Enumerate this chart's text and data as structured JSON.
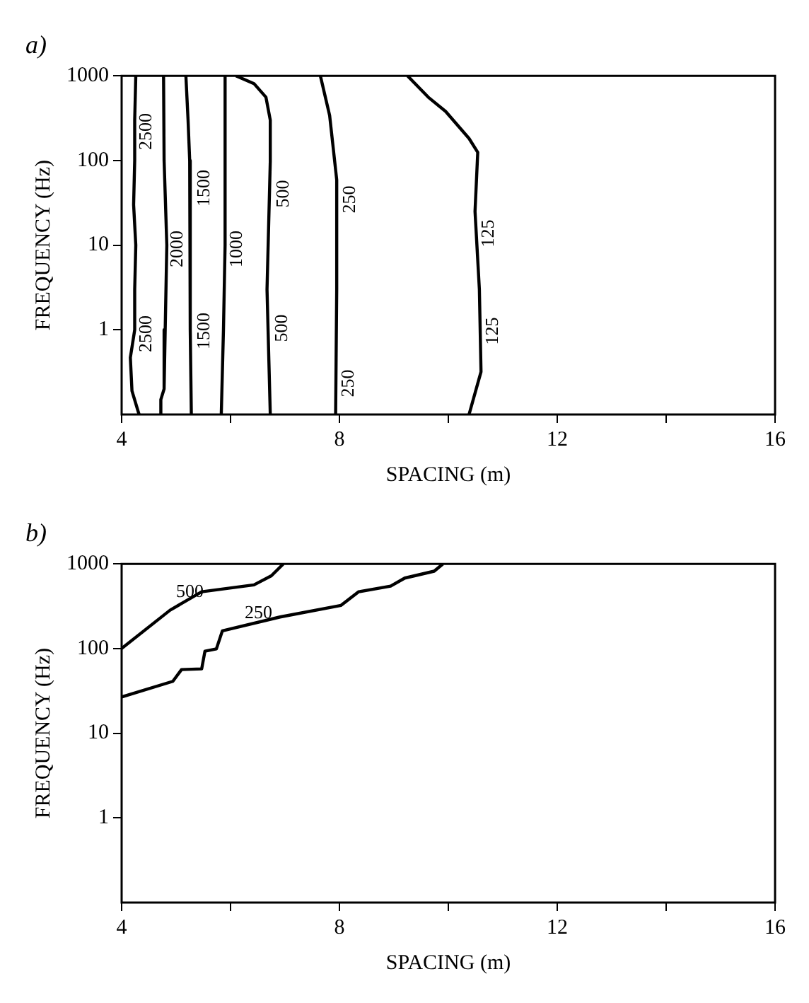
{
  "chart_data": [
    {
      "type": "line",
      "title": "a)",
      "xlabel": "SPACING (m)",
      "ylabel": "FREQUENCY (Hz)",
      "log": "y",
      "grid": false,
      "xlim": [
        4,
        16
      ],
      "xticks": [
        4,
        {
          "value": 6,
          "label": null
        },
        8,
        {
          "value": 10,
          "label": null
        },
        12,
        {
          "value": 14,
          "label": null
        },
        16
      ],
      "ylim": [
        0.1,
        1000
      ],
      "yticks": [
        1,
        10,
        100,
        1000
      ],
      "series": [
        {
          "color": "#000000",
          "x": [
            4.26,
            4.24,
            4.24,
            4.22,
            4.26,
            4.24,
            4.24,
            4.16,
            4.19,
            4.32
          ],
          "values": [
            1000,
            300,
            100,
            30,
            10,
            3,
            1,
            0.47,
            0.19,
            0.1
          ]
        },
        {
          "color": "#000000",
          "x": [
            4.77,
            4.78,
            4.83,
            4.8,
            4.78,
            4.72,
            4.72
          ],
          "values": [
            1000,
            100,
            10,
            1,
            0.2,
            0.15,
            0.1
          ]
        },
        {
          "color": "#000000",
          "x": [
            5.18,
            5.22,
            5.25,
            5.25,
            5.27,
            5.28
          ],
          "values": [
            1000,
            300,
            100,
            10,
            1,
            0.1
          ]
        },
        {
          "color": "#000000",
          "x": [
            5.9,
            5.9,
            5.9,
            5.87,
            5.83
          ],
          "values": [
            1000,
            100,
            10,
            1,
            0.1
          ]
        },
        {
          "color": "#000000",
          "x": [
            6.1,
            6.43,
            6.65,
            6.73,
            6.73,
            6.67,
            6.73
          ],
          "values": [
            1000,
            810,
            560,
            300,
            98,
            3,
            0.1
          ]
        },
        {
          "color": "#000000",
          "x": [
            7.65,
            7.82,
            7.95,
            7.95,
            7.93
          ],
          "values": [
            1000,
            340,
            59,
            3,
            0.1
          ]
        },
        {
          "color": "#000000",
          "x": [
            9.25,
            9.63,
            9.95,
            10.38,
            10.54,
            10.49,
            10.57,
            10.6,
            10.38
          ],
          "values": [
            1000,
            560,
            380,
            182,
            125,
            25,
            3,
            0.32,
            0.1
          ]
        }
      ],
      "annotations": [
        {
          "text": "2500",
          "x": 4.21,
          "y": 220
        },
        {
          "text": "2500",
          "x": 4.21,
          "y": 0.9
        },
        {
          "text": "2000",
          "x": 4.78,
          "y": 9
        },
        {
          "text": "1500",
          "x": 5.26,
          "y": 47
        },
        {
          "text": "1500",
          "x": 5.26,
          "y": 0.95
        },
        {
          "text": "1000",
          "x": 5.88,
          "y": 9
        },
        {
          "text": "500",
          "x": 6.73,
          "y": 41
        },
        {
          "text": "500",
          "x": 6.7,
          "y": 1.05
        },
        {
          "text": "250",
          "x": 7.95,
          "y": 34
        },
        {
          "text": "250",
          "x": 7.93,
          "y": 0.23
        },
        {
          "text": "125",
          "x": 10.49,
          "y": 14
        },
        {
          "text": "125",
          "x": 10.57,
          "y": 0.95
        }
      ]
    },
    {
      "type": "line",
      "title": "b)",
      "xlabel": "SPACING (m)",
      "ylabel": "FREQUENCY (Hz)",
      "log": "y",
      "grid": false,
      "xlim": [
        4,
        16
      ],
      "xticks": [
        4,
        {
          "value": 6,
          "label": null
        },
        8,
        {
          "value": 10,
          "label": null
        },
        12,
        {
          "value": 14,
          "label": null
        },
        16
      ],
      "ylim": [
        0.1,
        1000
      ],
      "yticks": [
        1,
        10,
        100,
        1000
      ],
      "series": [
        {
          "color": "#000000",
          "x": [
            4,
            4.89,
            5.47,
            6.43,
            6.75,
            6.97
          ],
          "values": [
            100,
            284,
            468,
            565,
            724,
            1000
          ]
        },
        {
          "color": "#000000",
          "x": [
            4,
            4.94,
            5.1,
            5.47,
            5.53,
            5.74,
            5.85,
            6.91,
            8.03,
            8.35,
            8.94,
            9.2,
            9.74,
            9.9
          ],
          "values": [
            26.8,
            41,
            56.5,
            57.6,
            93,
            99,
            162,
            236,
            324,
            468,
            547,
            680,
            820,
            1000
          ]
        }
      ],
      "annotations": [
        {
          "text": "500",
          "x": 5.15,
          "y": 330
        },
        {
          "text": "250",
          "x": 6.41,
          "y": 190
        }
      ]
    }
  ]
}
